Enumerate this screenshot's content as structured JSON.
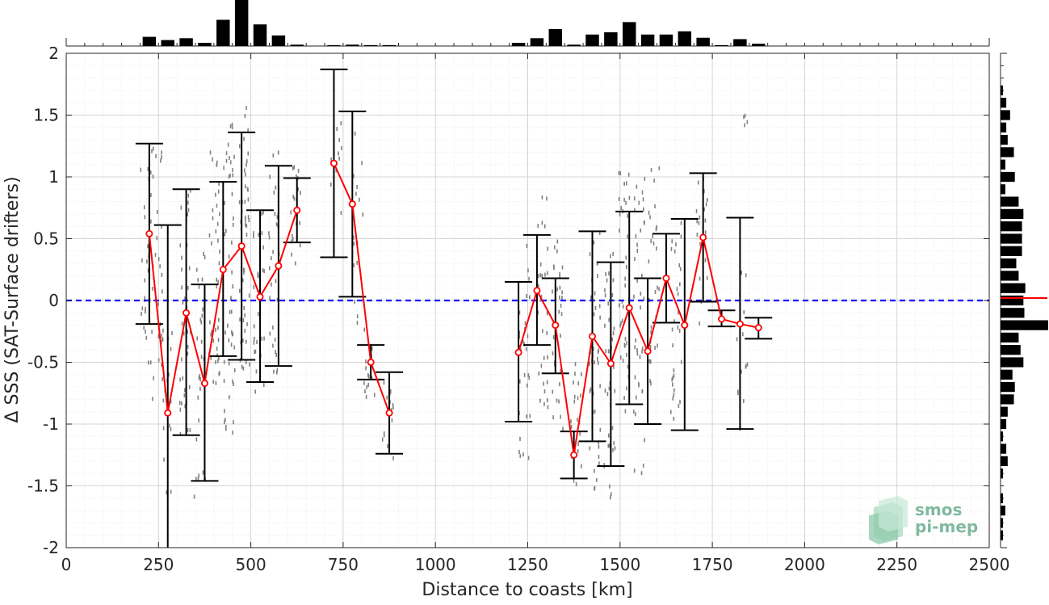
{
  "chart_data": {
    "type": "scatter",
    "xlabel": "Distance to coasts [km]",
    "ylabel": "Δ SSS (SAT-Surface drifters)",
    "xlim": [
      0,
      2500
    ],
    "ylim": [
      -2,
      2
    ],
    "xticks": [
      0,
      250,
      500,
      750,
      1000,
      1250,
      1500,
      1750,
      2000,
      2250,
      2500
    ],
    "yticks": [
      -2,
      -1.5,
      -1,
      -0.5,
      0,
      0.5,
      1,
      1.5,
      2
    ],
    "grid": true,
    "reference_line": 0,
    "colors": {
      "mean": "#ff0000",
      "errorbar": "#000000",
      "reference": "#0000ff",
      "raw": "#808080",
      "histogram": "#000000"
    },
    "series": [
      {
        "segments": [
          [
            {
              "x": 225,
              "y": 0.54,
              "low": -0.19,
              "high": 1.27
            },
            {
              "x": 275,
              "y": -0.91,
              "low": -2.0,
              "high": 0.61
            },
            {
              "x": 325,
              "y": -0.1,
              "low": -1.09,
              "high": 0.9
            },
            {
              "x": 375,
              "y": -0.67,
              "low": -1.46,
              "high": 0.13
            },
            {
              "x": 425,
              "y": 0.25,
              "low": -0.45,
              "high": 0.96
            },
            {
              "x": 475,
              "y": 0.44,
              "low": -0.48,
              "high": 1.36
            },
            {
              "x": 525,
              "y": 0.03,
              "low": -0.66,
              "high": 0.73
            },
            {
              "x": 575,
              "y": 0.28,
              "low": -0.53,
              "high": 1.09
            },
            {
              "x": 625,
              "y": 0.73,
              "low": 0.47,
              "high": 0.99
            }
          ],
          [
            {
              "x": 725,
              "y": 1.11,
              "low": 0.35,
              "high": 1.87
            },
            {
              "x": 775,
              "y": 0.78,
              "low": 0.03,
              "high": 1.53
            },
            {
              "x": 825,
              "y": -0.5,
              "low": -0.64,
              "high": -0.36
            },
            {
              "x": 875,
              "y": -0.91,
              "low": -1.24,
              "high": -0.58
            }
          ],
          [
            {
              "x": 1225,
              "y": -0.42,
              "low": -0.98,
              "high": 0.15
            },
            {
              "x": 1275,
              "y": 0.08,
              "low": -0.36,
              "high": 0.53
            },
            {
              "x": 1325,
              "y": -0.2,
              "low": -0.59,
              "high": 0.18
            },
            {
              "x": 1375,
              "y": -1.25,
              "low": -1.44,
              "high": -1.06
            },
            {
              "x": 1425,
              "y": -0.29,
              "low": -1.14,
              "high": 0.56
            },
            {
              "x": 1475,
              "y": -0.51,
              "low": -1.34,
              "high": 0.31
            },
            {
              "x": 1525,
              "y": -0.06,
              "low": -0.84,
              "high": 0.72
            },
            {
              "x": 1575,
              "y": -0.41,
              "low": -1.0,
              "high": 0.18
            },
            {
              "x": 1625,
              "y": 0.18,
              "low": -0.18,
              "high": 0.54
            },
            {
              "x": 1675,
              "y": -0.2,
              "low": -1.05,
              "high": 0.66
            },
            {
              "x": 1725,
              "y": 0.51,
              "low": -0.01,
              "high": 1.03
            },
            {
              "x": 1775,
              "y": -0.15,
              "low": -0.21,
              "high": -0.08
            },
            {
              "x": 1825,
              "y": -0.19,
              "low": -1.04,
              "high": 0.67
            },
            {
              "x": 1875,
              "y": -0.22,
              "low": -0.31,
              "high": -0.14
            }
          ]
        ]
      }
    ],
    "raw_clusters": [
      {
        "x": 215,
        "y": 0.3,
        "spread": 0.9,
        "n": 30
      },
      {
        "x": 245,
        "y": 0.3,
        "spread": 1.1,
        "n": 30
      },
      {
        "x": 270,
        "y": -0.9,
        "spread": 0.7,
        "n": 20
      },
      {
        "x": 320,
        "y": -0.1,
        "spread": 1.0,
        "n": 40
      },
      {
        "x": 360,
        "y": -0.6,
        "spread": 1.0,
        "n": 30
      },
      {
        "x": 400,
        "y": 0.3,
        "spread": 1.0,
        "n": 40
      },
      {
        "x": 440,
        "y": 0.2,
        "spread": 1.3,
        "n": 50
      },
      {
        "x": 480,
        "y": 0.5,
        "spread": 1.1,
        "n": 50
      },
      {
        "x": 520,
        "y": 0.0,
        "spread": 0.8,
        "n": 30
      },
      {
        "x": 560,
        "y": 0.3,
        "spread": 0.9,
        "n": 30
      },
      {
        "x": 620,
        "y": 0.7,
        "spread": 0.4,
        "n": 20
      },
      {
        "x": 730,
        "y": 1.1,
        "spread": 0.4,
        "n": 10
      },
      {
        "x": 790,
        "y": 0.6,
        "spread": 0.8,
        "n": 15
      },
      {
        "x": 820,
        "y": -0.5,
        "spread": 0.3,
        "n": 15
      },
      {
        "x": 870,
        "y": -1.0,
        "spread": 0.4,
        "n": 15
      },
      {
        "x": 1240,
        "y": -0.4,
        "spread": 0.9,
        "n": 30
      },
      {
        "x": 1290,
        "y": 0.0,
        "spread": 0.9,
        "n": 30
      },
      {
        "x": 1330,
        "y": -0.3,
        "spread": 0.8,
        "n": 30
      },
      {
        "x": 1380,
        "y": -1.0,
        "spread": 0.5,
        "n": 20
      },
      {
        "x": 1430,
        "y": -0.5,
        "spread": 1.1,
        "n": 40
      },
      {
        "x": 1470,
        "y": -0.6,
        "spread": 1.0,
        "n": 40
      },
      {
        "x": 1510,
        "y": 0.1,
        "spread": 1.0,
        "n": 40
      },
      {
        "x": 1550,
        "y": -0.2,
        "spread": 1.2,
        "n": 40
      },
      {
        "x": 1590,
        "y": 0.2,
        "spread": 0.9,
        "n": 30
      },
      {
        "x": 1650,
        "y": -0.2,
        "spread": 0.9,
        "n": 30
      },
      {
        "x": 1720,
        "y": 0.4,
        "spread": 0.6,
        "n": 20
      },
      {
        "x": 1830,
        "y": -0.3,
        "spread": 0.8,
        "n": 15
      },
      {
        "x": 1840,
        "y": 1.45,
        "spread": 0.05,
        "n": 4
      }
    ],
    "hist_x": [
      {
        "x": 225,
        "count": 0.2
      },
      {
        "x": 275,
        "count": 0.13
      },
      {
        "x": 325,
        "count": 0.17
      },
      {
        "x": 375,
        "count": 0.07
      },
      {
        "x": 425,
        "count": 0.57
      },
      {
        "x": 475,
        "count": 1.0
      },
      {
        "x": 525,
        "count": 0.47
      },
      {
        "x": 575,
        "count": 0.23
      },
      {
        "x": 625,
        "count": 0.03
      },
      {
        "x": 725,
        "count": 0.02
      },
      {
        "x": 775,
        "count": 0.03
      },
      {
        "x": 825,
        "count": 0.02
      },
      {
        "x": 875,
        "count": 0.02
      },
      {
        "x": 1225,
        "count": 0.07
      },
      {
        "x": 1275,
        "count": 0.17
      },
      {
        "x": 1325,
        "count": 0.37
      },
      {
        "x": 1375,
        "count": 0.03
      },
      {
        "x": 1425,
        "count": 0.25
      },
      {
        "x": 1475,
        "count": 0.3
      },
      {
        "x": 1525,
        "count": 0.52
      },
      {
        "x": 1575,
        "count": 0.25
      },
      {
        "x": 1625,
        "count": 0.25
      },
      {
        "x": 1675,
        "count": 0.32
      },
      {
        "x": 1725,
        "count": 0.18
      },
      {
        "x": 1775,
        "count": 0.02
      },
      {
        "x": 1825,
        "count": 0.15
      },
      {
        "x": 1875,
        "count": 0.05
      }
    ],
    "hist_y": [
      {
        "y": 1.7,
        "count": 0.05
      },
      {
        "y": 1.6,
        "count": 0.12
      },
      {
        "y": 1.5,
        "count": 0.2
      },
      {
        "y": 1.4,
        "count": 0.12
      },
      {
        "y": 1.3,
        "count": 0.15
      },
      {
        "y": 1.2,
        "count": 0.28
      },
      {
        "y": 1.1,
        "count": 0.1
      },
      {
        "y": 1.0,
        "count": 0.3
      },
      {
        "y": 0.9,
        "count": 0.1
      },
      {
        "y": 0.8,
        "count": 0.38
      },
      {
        "y": 0.7,
        "count": 0.48
      },
      {
        "y": 0.6,
        "count": 0.45
      },
      {
        "y": 0.5,
        "count": 0.45
      },
      {
        "y": 0.4,
        "count": 0.45
      },
      {
        "y": 0.3,
        "count": 0.33
      },
      {
        "y": 0.2,
        "count": 0.38
      },
      {
        "y": 0.1,
        "count": 0.52
      },
      {
        "y": 0.0,
        "count": 0.48
      },
      {
        "y": -0.1,
        "count": 0.5
      },
      {
        "y": -0.2,
        "count": 1.0
      },
      {
        "y": -0.3,
        "count": 0.38
      },
      {
        "y": -0.4,
        "count": 0.42
      },
      {
        "y": -0.5,
        "count": 0.48
      },
      {
        "y": -0.6,
        "count": 0.25
      },
      {
        "y": -0.7,
        "count": 0.3
      },
      {
        "y": -0.8,
        "count": 0.28
      },
      {
        "y": -0.9,
        "count": 0.15
      },
      {
        "y": -1.0,
        "count": 0.12
      },
      {
        "y": -1.1,
        "count": 0.05
      },
      {
        "y": -1.2,
        "count": 0.12
      },
      {
        "y": -1.3,
        "count": 0.15
      },
      {
        "y": -1.4,
        "count": 0.05
      },
      {
        "y": -1.6,
        "count": 0.05
      },
      {
        "y": -1.7,
        "count": 0.1
      },
      {
        "y": -1.8,
        "count": 0.05
      },
      {
        "y": -1.9,
        "count": 0.05
      }
    ],
    "hist_y_marker": 0.02,
    "logo": {
      "line1": "smos",
      "line2": "pi-mep"
    }
  }
}
